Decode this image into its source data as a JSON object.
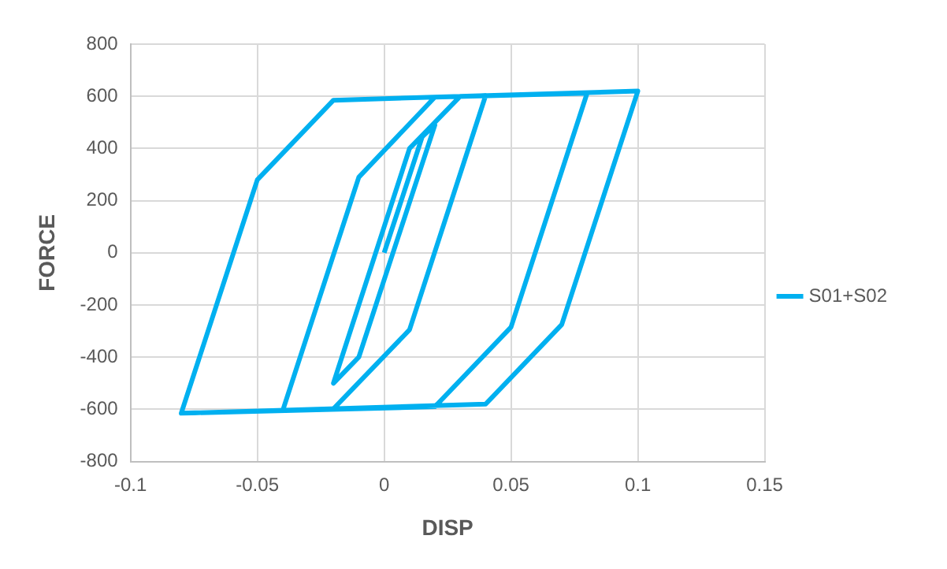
{
  "chart_data": {
    "type": "line",
    "xlabel": "DISP",
    "ylabel": "FORCE",
    "xlim": [
      -0.1,
      0.15
    ],
    "xticks": [
      -0.1,
      -0.05,
      0,
      0.05,
      0.1,
      0.15
    ],
    "ylim": [
      -800,
      800
    ],
    "yticks": [
      -800,
      -600,
      -400,
      -200,
      0,
      200,
      400,
      600,
      800
    ],
    "grid": true,
    "legend": "right",
    "marker": "none",
    "line_style": "solid",
    "series": [
      {
        "name": "S01+S02",
        "color": "#00b0f0",
        "x": [
          0,
          0.015,
          0.02,
          -0.01,
          -0.02,
          0.01,
          0.03,
          0.04,
          0.01,
          -0.02,
          -0.04,
          -0.01,
          0.02,
          0.08,
          0.05,
          0.02,
          -0.08,
          -0.05,
          -0.02,
          0.1,
          0.07,
          0.04,
          -0.08
        ],
        "values": [
          0,
          445,
          490,
          -400,
          -500,
          400,
          600,
          603,
          -295,
          -598,
          -605,
          290,
          597,
          612,
          -285,
          -590,
          -615,
          280,
          585,
          620,
          -275,
          -580,
          -615
        ]
      }
    ]
  }
}
